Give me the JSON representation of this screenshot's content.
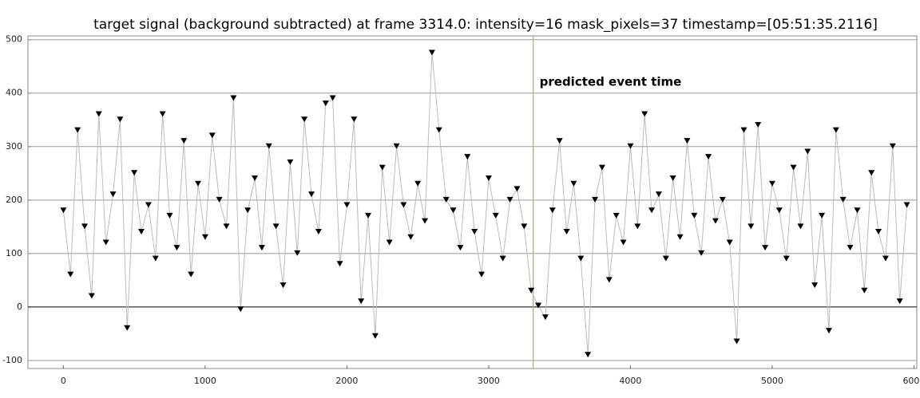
{
  "chart_data": {
    "type": "line",
    "title": "target signal (background subtracted) at frame 3314.0: intensity=16 mask_pixels=37 timestamp=[05:51:35.2116]",
    "annotation": "predicted event time",
    "event_x": 3314,
    "x": [
      0,
      50,
      100,
      150,
      200,
      250,
      300,
      350,
      400,
      450,
      500,
      550,
      600,
      650,
      700,
      750,
      800,
      850,
      900,
      950,
      1000,
      1050,
      1100,
      1150,
      1200,
      1250,
      1300,
      1350,
      1400,
      1450,
      1500,
      1550,
      1600,
      1650,
      1700,
      1750,
      1800,
      1850,
      1900,
      1950,
      2000,
      2050,
      2100,
      2150,
      2200,
      2250,
      2300,
      2350,
      2400,
      2450,
      2500,
      2550,
      2600,
      2650,
      2700,
      2750,
      2800,
      2850,
      2900,
      2950,
      3000,
      3050,
      3100,
      3150,
      3200,
      3250,
      3300,
      3350,
      3400,
      3450,
      3500,
      3550,
      3600,
      3650,
      3700,
      3750,
      3800,
      3850,
      3900,
      3950,
      4000,
      4050,
      4100,
      4150,
      4200,
      4250,
      4300,
      4350,
      4400,
      4450,
      4500,
      4550,
      4600,
      4650,
      4700,
      4750,
      4800,
      4850,
      4900,
      4950,
      5000,
      5050,
      5100,
      5150,
      5200,
      5250,
      5300,
      5350,
      5400,
      5450,
      5500,
      5550,
      5600,
      5650,
      5700,
      5750,
      5800,
      5850,
      5900,
      5950
    ],
    "series": [
      {
        "name": "signal",
        "color": "#000000",
        "line_color": "#bbbbbb",
        "values": [
          180,
          60,
          330,
          150,
          20,
          360,
          120,
          210,
          350,
          -40,
          250,
          140,
          190,
          90,
          360,
          170,
          110,
          310,
          60,
          230,
          130,
          320,
          200,
          150,
          390,
          -5,
          180,
          240,
          110,
          300,
          150,
          40,
          270,
          100,
          350,
          210,
          140,
          380,
          390,
          80,
          190,
          350,
          10,
          170,
          -55,
          260,
          120,
          300,
          190,
          130,
          230,
          160,
          475,
          330,
          200,
          180,
          110,
          280,
          140,
          60,
          240,
          170,
          90,
          200,
          220,
          150,
          30,
          2,
          -20,
          180,
          310,
          140,
          230,
          90,
          -90,
          200,
          260,
          50,
          170,
          120,
          300,
          150,
          360,
          180,
          210,
          90,
          240,
          130,
          310,
          170,
          100,
          280,
          160,
          200,
          120,
          -65,
          330,
          150,
          340,
          110,
          230,
          180,
          90,
          260,
          150,
          290,
          40,
          170,
          -45,
          330,
          200,
          110,
          180,
          30,
          250,
          140,
          90,
          300,
          10,
          190
        ]
      }
    ],
    "xlim": [
      -250,
      6020
    ],
    "ylim": [
      -115,
      507
    ],
    "xticks": [
      0,
      1000,
      2000,
      3000,
      4000,
      5000,
      6000
    ],
    "yticks": [
      -100,
      0,
      100,
      200,
      300,
      400,
      500
    ],
    "grid": true
  }
}
